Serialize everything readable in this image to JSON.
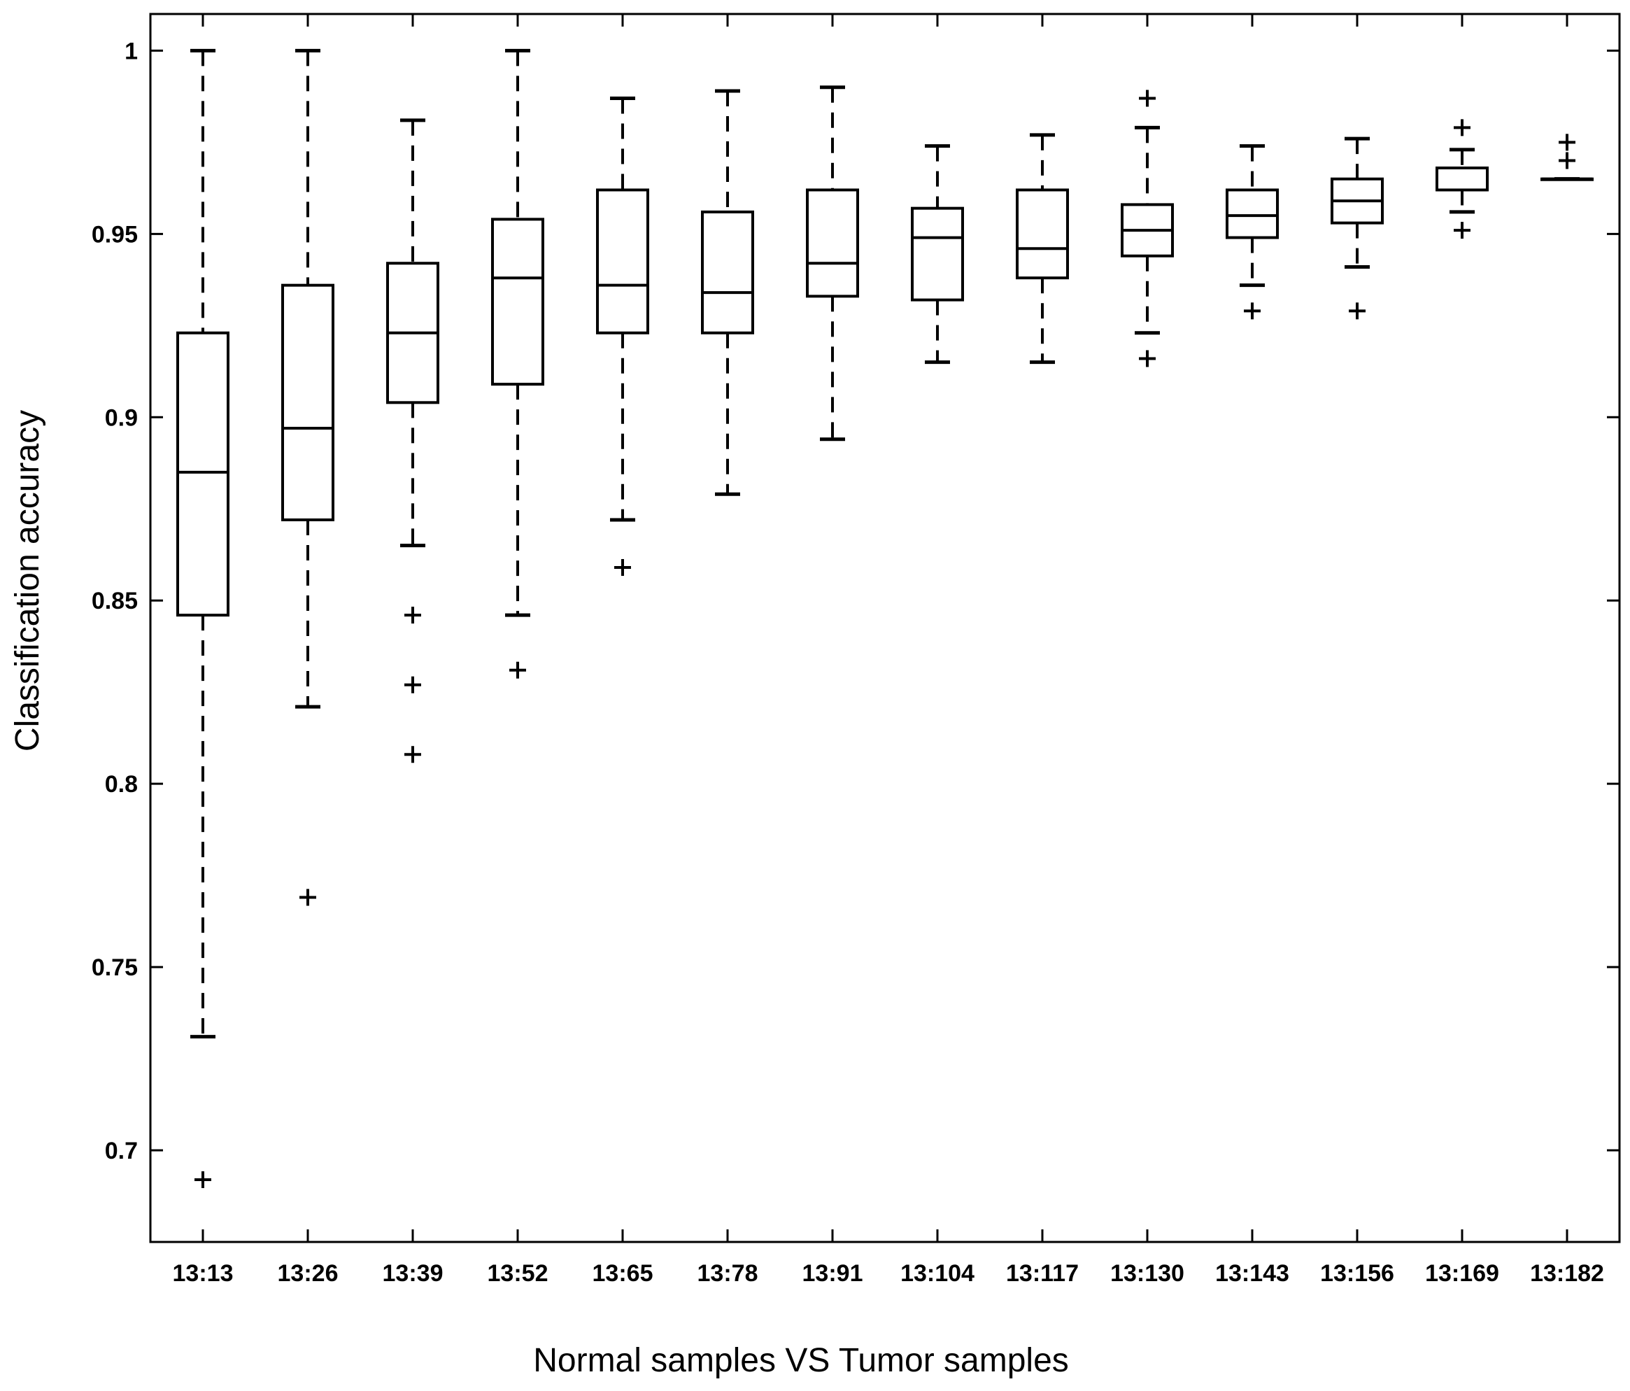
{
  "chart_data": {
    "type": "boxplot",
    "title": "",
    "xlabel": "Normal samples VS Tumor samples",
    "ylabel": "Classification accuracy",
    "ylim": [
      0.675,
      1.01
    ],
    "yticks": [
      0.7,
      0.75,
      0.8,
      0.85,
      0.9,
      0.95,
      1
    ],
    "ytick_labels": [
      "0.7",
      "0.75",
      "0.8",
      "0.85",
      "0.9",
      "0.95",
      "1"
    ],
    "grid": false,
    "categories": [
      "13:13",
      "13:26",
      "13:39",
      "13:52",
      "13:65",
      "13:78",
      "13:91",
      "13:104",
      "13:117",
      "13:130",
      "13:143",
      "13:156",
      "13:169",
      "13:182"
    ],
    "boxes": [
      {
        "whisker_low": 0.731,
        "q1": 0.846,
        "median": 0.885,
        "q3": 0.923,
        "whisker_high": 1.0,
        "outliers": [
          0.692
        ]
      },
      {
        "whisker_low": 0.821,
        "q1": 0.872,
        "median": 0.897,
        "q3": 0.936,
        "whisker_high": 1.0,
        "outliers": [
          0.769
        ]
      },
      {
        "whisker_low": 0.865,
        "q1": 0.904,
        "median": 0.923,
        "q3": 0.942,
        "whisker_high": 0.981,
        "outliers": [
          0.846,
          0.827,
          0.808
        ]
      },
      {
        "whisker_low": 0.846,
        "q1": 0.909,
        "median": 0.938,
        "q3": 0.954,
        "whisker_high": 1.0,
        "outliers": [
          0.831
        ]
      },
      {
        "whisker_low": 0.872,
        "q1": 0.923,
        "median": 0.936,
        "q3": 0.962,
        "whisker_high": 0.987,
        "outliers": [
          0.859
        ]
      },
      {
        "whisker_low": 0.879,
        "q1": 0.923,
        "median": 0.934,
        "q3": 0.956,
        "whisker_high": 0.989,
        "outliers": []
      },
      {
        "whisker_low": 0.894,
        "q1": 0.933,
        "median": 0.942,
        "q3": 0.962,
        "whisker_high": 0.99,
        "outliers": []
      },
      {
        "whisker_low": 0.915,
        "q1": 0.932,
        "median": 0.949,
        "q3": 0.957,
        "whisker_high": 0.974,
        "outliers": []
      },
      {
        "whisker_low": 0.915,
        "q1": 0.938,
        "median": 0.946,
        "q3": 0.962,
        "whisker_high": 0.977,
        "outliers": []
      },
      {
        "whisker_low": 0.923,
        "q1": 0.944,
        "median": 0.951,
        "q3": 0.958,
        "whisker_high": 0.979,
        "outliers": [
          0.987,
          0.916
        ]
      },
      {
        "whisker_low": 0.936,
        "q1": 0.949,
        "median": 0.955,
        "q3": 0.962,
        "whisker_high": 0.974,
        "outliers": [
          0.929
        ]
      },
      {
        "whisker_low": 0.941,
        "q1": 0.953,
        "median": 0.959,
        "q3": 0.965,
        "whisker_high": 0.976,
        "outliers": [
          0.929
        ]
      },
      {
        "whisker_low": 0.956,
        "q1": 0.962,
        "median": 0.962,
        "q3": 0.968,
        "whisker_high": 0.973,
        "outliers": [
          0.979,
          0.951
        ]
      },
      {
        "whisker_low": 0.965,
        "q1": 0.965,
        "median": 0.965,
        "q3": 0.965,
        "whisker_high": 0.965,
        "outliers": [
          0.975,
          0.97
        ]
      }
    ]
  }
}
